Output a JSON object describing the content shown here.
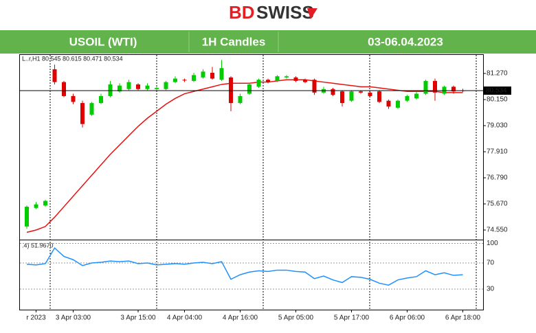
{
  "header": {
    "logo_left": "BD",
    "logo_right": "SWISS",
    "cells": [
      "USOIL (WTI)",
      "1H Candles",
      "03-06.04.2023"
    ]
  },
  "chart_data": {
    "type": "candlestick",
    "info": "L..r,H1  80.545 80.615 80.471 80.534",
    "categories": [
      null,
      "r 2023",
      null,
      null,
      null,
      "3 Apr 03:00",
      null,
      null,
      null,
      null,
      null,
      null,
      "3 Apr 15:00",
      null,
      null,
      null,
      null,
      "4 Apr 04:00",
      null,
      null,
      null,
      null,
      null,
      "4 Apr 16:00",
      null,
      null,
      null,
      null,
      null,
      "5 Apr 05:00",
      null,
      null,
      null,
      null,
      null,
      "5 Apr 17:00",
      null,
      null,
      null,
      null,
      null,
      "6 Apr 06:00",
      null,
      null,
      null,
      null,
      null,
      "6 Apr 18:00"
    ],
    "open": [
      74.7,
      75.5,
      75.6,
      81.45,
      80.9,
      80.3,
      80.0,
      79.5,
      80.0,
      80.3,
      80.5,
      80.6,
      80.8,
      80.6,
      80.6,
      80.6,
      80.9,
      81.0,
      80.95,
      81.1,
      81.3,
      81.0,
      81.1,
      80.0,
      80.4,
      80.7,
      81.0,
      80.95,
      81.1,
      81.1,
      81.0,
      81.0,
      80.45,
      80.6,
      80.5,
      80.1,
      80.5,
      80.45,
      80.5,
      80.1,
      79.8,
      80.1,
      80.2,
      80.4,
      80.95,
      80.4,
      80.7,
      80.545
    ],
    "high": [
      75.6,
      75.75,
      75.85,
      81.65,
      80.95,
      80.4,
      80.1,
      80.05,
      80.4,
      80.95,
      80.85,
      81.0,
      80.85,
      80.85,
      80.7,
      80.95,
      81.15,
      81.05,
      81.3,
      81.45,
      81.55,
      81.85,
      81.15,
      80.4,
      80.85,
      81.05,
      81.05,
      81.2,
      81.2,
      81.15,
      81.05,
      81.05,
      80.7,
      80.65,
      80.55,
      80.55,
      80.55,
      80.5,
      80.55,
      80.15,
      80.15,
      80.35,
      80.5,
      81.0,
      81.05,
      80.75,
      80.75,
      80.615
    ],
    "low": [
      74.6,
      75.45,
      75.55,
      80.8,
      80.25,
      79.95,
      78.95,
      79.45,
      79.95,
      80.25,
      80.45,
      80.55,
      80.55,
      80.55,
      80.55,
      80.55,
      80.85,
      80.9,
      80.9,
      81.05,
      81.0,
      80.95,
      79.65,
      79.95,
      80.35,
      80.65,
      80.85,
      80.9,
      81.05,
      80.9,
      80.85,
      80.35,
      80.4,
      80.3,
      79.85,
      80.05,
      80.4,
      80.25,
      80.0,
      79.75,
      79.75,
      80.05,
      80.15,
      80.35,
      80.1,
      80.35,
      80.4,
      80.471
    ],
    "close": [
      75.55,
      75.65,
      75.8,
      80.9,
      80.3,
      80.05,
      79.1,
      80.0,
      80.3,
      80.8,
      80.75,
      80.9,
      80.6,
      80.75,
      80.65,
      80.9,
      81.05,
      80.97,
      81.2,
      81.35,
      81.05,
      81.5,
      80.0,
      80.3,
      80.8,
      81.0,
      80.9,
      81.15,
      81.15,
      80.95,
      80.9,
      80.45,
      80.6,
      80.35,
      80.0,
      80.5,
      80.45,
      80.3,
      80.05,
      79.85,
      80.1,
      80.3,
      80.4,
      80.95,
      80.45,
      80.7,
      80.5,
      80.534
    ],
    "up_color": "#00cc00",
    "down_color": "#e00000",
    "ma": {
      "color": "#e81010",
      "values": [
        74.45,
        74.55,
        74.7,
        75.1,
        75.55,
        76.0,
        76.45,
        76.9,
        77.35,
        77.8,
        78.2,
        78.6,
        79.0,
        79.35,
        79.65,
        79.95,
        80.2,
        80.4,
        80.5,
        80.6,
        80.7,
        80.8,
        80.85,
        80.85,
        80.85,
        80.9,
        80.9,
        80.95,
        81.0,
        81.0,
        81.0,
        80.95,
        80.9,
        80.85,
        80.8,
        80.75,
        80.7,
        80.7,
        80.65,
        80.6,
        80.55,
        80.5,
        80.5,
        80.5,
        80.5,
        80.45,
        80.45,
        80.45
      ]
    },
    "current_price": 80.534,
    "ylim": [
      74.196,
      82.066
    ],
    "yticks": [
      {
        "value": 81.27,
        "label": "81.270"
      },
      {
        "value": 80.15,
        "label": "80.150"
      },
      {
        "value": 79.03,
        "label": "79.030"
      },
      {
        "value": 77.91,
        "label": "77.910"
      },
      {
        "value": 76.79,
        "label": "76.790"
      },
      {
        "value": 75.67,
        "label": "75.670"
      },
      {
        "value": 74.55,
        "label": "74.550"
      }
    ],
    "rsi": {
      "label": ".4) 51.9670",
      "color": "#1e90ff",
      "values": [
        68,
        67,
        69,
        93,
        80,
        75,
        66,
        70,
        71,
        73,
        72,
        73,
        69,
        70,
        67,
        68,
        69,
        68,
        70,
        71,
        69,
        72,
        45,
        52,
        56,
        58,
        57,
        59,
        59,
        57,
        56,
        46,
        50,
        44,
        40,
        49,
        48,
        45,
        39,
        36,
        44,
        47,
        49,
        58,
        52,
        55,
        51,
        51.967
      ],
      "ylim": [
        -2.6,
        104.7
      ],
      "yticks": [
        100,
        70,
        30
      ]
    }
  }
}
